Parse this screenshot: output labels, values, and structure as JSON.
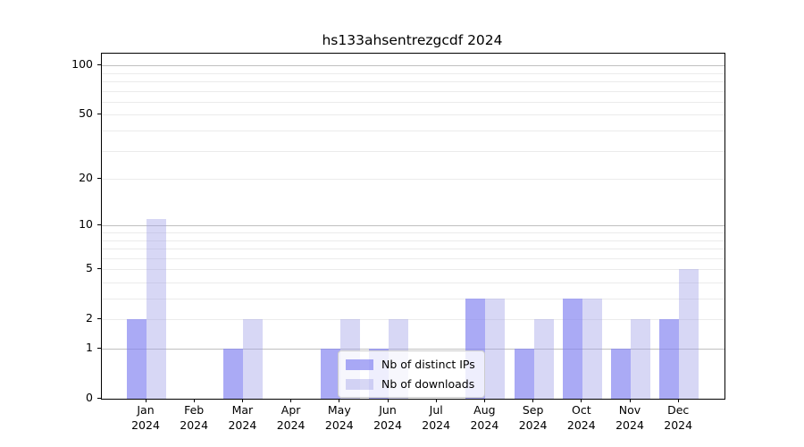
{
  "figure": {
    "background": "#ffffff",
    "axis_color": "#000000"
  },
  "chart_data": {
    "type": "bar",
    "title": "hs133ahsentrezgcdf 2024",
    "categories": [
      "Jan 2024",
      "Feb 2024",
      "Mar 2024",
      "Apr 2024",
      "May 2024",
      "Jun 2024",
      "Jul 2024",
      "Aug 2024",
      "Sep 2024",
      "Oct 2024",
      "Nov 2024",
      "Dec 2024"
    ],
    "series": [
      {
        "name": "Nb of distinct IPs",
        "color": "#aaaaf5",
        "fill": "rgba(130,130,240,0.68)",
        "values": [
          2,
          0,
          1,
          0,
          1,
          1,
          0,
          3,
          1,
          3,
          1,
          2
        ]
      },
      {
        "name": "Nb of downloads",
        "color": "#d8d8f7",
        "fill": "rgba(160,160,230,0.42)",
        "values": [
          11,
          0,
          2,
          0,
          2,
          2,
          0,
          3,
          2,
          3,
          2,
          5
        ]
      }
    ],
    "xlabel": "",
    "ylabel": "",
    "y_ticks": [
      0,
      1,
      2,
      5,
      10,
      20,
      50,
      100
    ],
    "y_minor_gridlines": [
      2,
      3,
      4,
      6,
      7,
      8,
      9,
      5,
      20,
      30,
      40,
      50,
      60,
      70,
      80,
      90
    ],
    "y_major_gridlines": [
      1,
      10,
      100
    ],
    "y_scale": "log10(1+x)",
    "ylim": [
      0,
      118
    ],
    "grid": "horizontal",
    "legend_position": "lower-center-inside",
    "minor_grid_color": "#ebebeb",
    "major_grid_color": "#c0c0c0"
  }
}
